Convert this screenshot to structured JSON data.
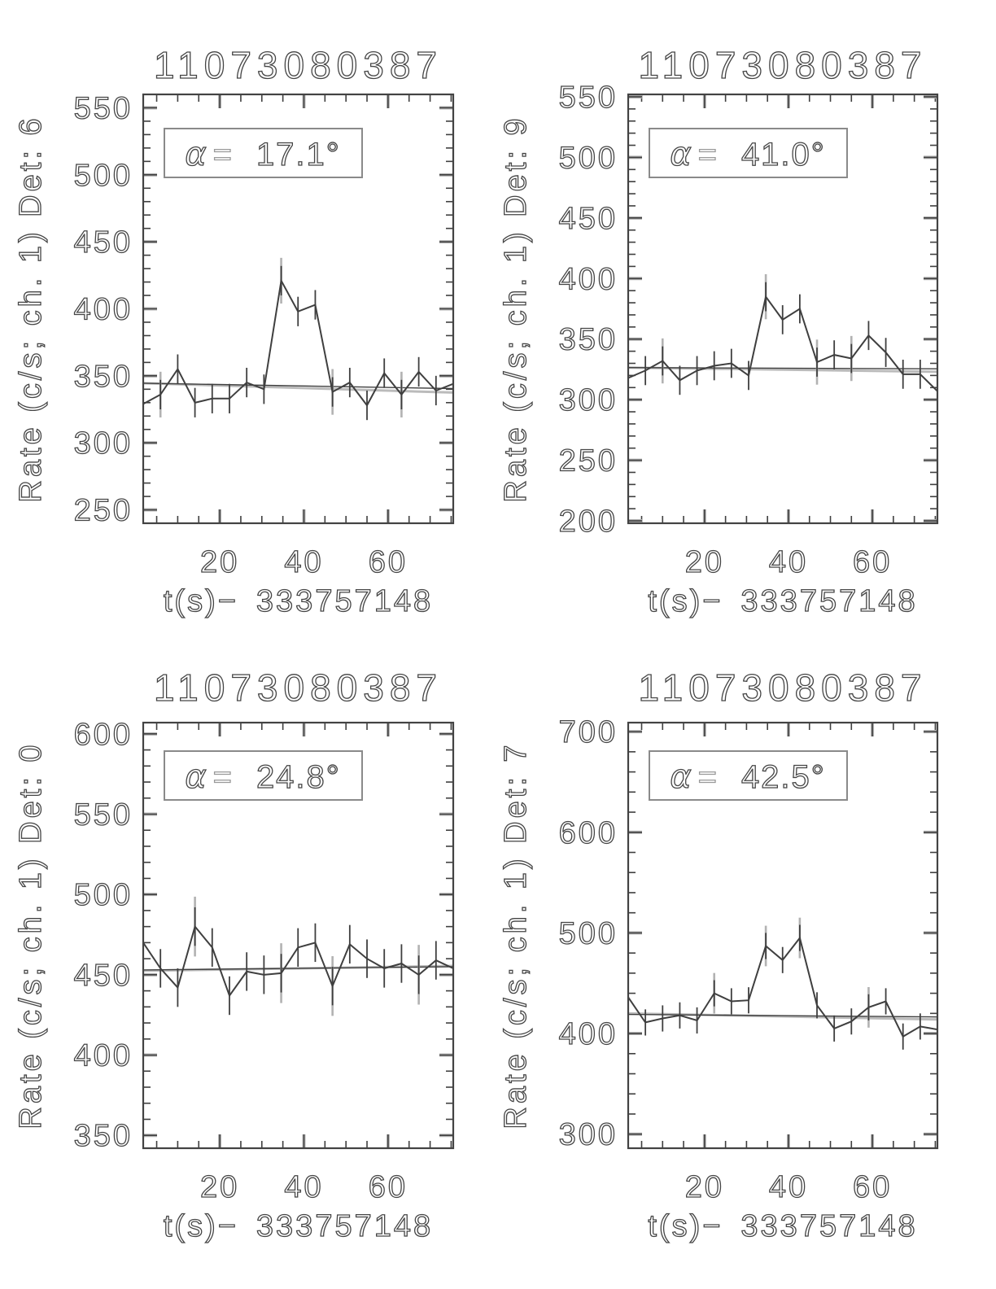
{
  "page": {
    "background": "#ffffff",
    "description": "2x2 grid of gamma-ray burst detector light curves"
  },
  "colors": {
    "ink": "#3f3f3f",
    "text_stroke": "#454545",
    "muted": "#b2b2b2",
    "fit_gray": "#bbbbbb",
    "frame": "#434343",
    "box_border": "#8a8a8a",
    "equals_gray": "#9a9a9a"
  },
  "chart_data": [
    {
      "id": "det6",
      "type": "line",
      "title": "11073080387",
      "ylabel": "Rate (c/s; ch. 1) Det: 6",
      "xlabel": "t(s)− 333757148",
      "annotation": {
        "symbol": "α",
        "equals": "=",
        "value": "17.1°"
      },
      "xlim": [
        1.8,
        75.5
      ],
      "ylim": [
        240,
        560
      ],
      "x_ticks": [
        20,
        40,
        60
      ],
      "x_minor_step": 5,
      "y_ticks": [
        250,
        300,
        350,
        400,
        450,
        500,
        550
      ],
      "y_minor_step": 10,
      "x": [
        1.8,
        5.9,
        10.0,
        14.1,
        18.2,
        22.3,
        26.4,
        30.5,
        34.6,
        38.6,
        42.7,
        46.8,
        50.9,
        55.0,
        59.1,
        63.2,
        67.3,
        71.4,
        75.5
      ],
      "rate": [
        329,
        336,
        355,
        330,
        333,
        333,
        345,
        340,
        421,
        398,
        403,
        338,
        345,
        328,
        352,
        336,
        353,
        339,
        344
      ],
      "err": 11,
      "err_gray_idx": [
        1,
        8,
        11,
        15
      ],
      "fit_gray": [
        344.5,
        337.5
      ],
      "fit_dark": [
        344.5,
        340.5
      ]
    },
    {
      "id": "det9",
      "type": "line",
      "title": "11073080387",
      "ylabel": "Rate (c/s; ch. 1) Det: 9",
      "xlabel": "t(s)− 333757148",
      "annotation": {
        "symbol": "α",
        "equals": "=",
        "value": "41.0°"
      },
      "xlim": [
        1.8,
        75.5
      ],
      "ylim": [
        198,
        552
      ],
      "x_ticks": [
        20,
        40,
        60
      ],
      "x_minor_step": 5,
      "y_ticks": [
        200,
        250,
        300,
        350,
        400,
        450,
        500,
        550
      ],
      "y_minor_step": 10,
      "x": [
        1.8,
        5.9,
        10.0,
        14.1,
        18.2,
        22.3,
        26.4,
        30.5,
        34.6,
        38.6,
        42.7,
        46.8,
        50.9,
        55.0,
        59.1,
        63.2,
        67.3,
        71.4,
        75.5
      ],
      "rate": [
        318,
        324,
        332,
        316,
        324,
        328,
        330,
        320,
        385,
        366,
        375,
        331,
        337,
        334,
        353,
        339,
        321,
        321,
        307
      ],
      "err": 12,
      "err_gray_idx": [
        2,
        8,
        11,
        13
      ],
      "fit_gray": [
        326.5,
        323.0
      ],
      "fit_dark": [
        326.5,
        325.5
      ]
    },
    {
      "id": "det0",
      "type": "line",
      "title": "11073080387",
      "ylabel": "Rate (c/s; ch. 1) Det: 0",
      "xlabel": "t(s)− 333757148",
      "annotation": {
        "symbol": "α",
        "equals": "=",
        "value": "24.8°"
      },
      "xlim": [
        1.8,
        75.5
      ],
      "ylim": [
        342,
        607
      ],
      "x_ticks": [
        20,
        40,
        60
      ],
      "x_minor_step": 5,
      "y_ticks": [
        350,
        400,
        450,
        500,
        550,
        600
      ],
      "y_minor_step": 10,
      "x": [
        1.8,
        5.9,
        10.0,
        14.1,
        18.2,
        22.3,
        26.4,
        30.5,
        34.6,
        38.6,
        42.7,
        46.8,
        50.9,
        55.0,
        59.1,
        63.2,
        67.3,
        71.4,
        75.5
      ],
      "rate": [
        470,
        454,
        442,
        480,
        467,
        437,
        452,
        450,
        451,
        467,
        470,
        443,
        469,
        460,
        454,
        457,
        450,
        459,
        454
      ],
      "err": 12,
      "err_gray_idx": [
        3,
        8,
        11,
        16
      ],
      "fit_gray": [
        452.5,
        455.5
      ],
      "fit_dark": [
        453.0,
        455.0
      ]
    },
    {
      "id": "det7",
      "type": "line",
      "title": "11073080387",
      "ylabel": "Rate (c/s; ch. 1) Det: 7",
      "xlabel": "t(s)− 333757148",
      "annotation": {
        "symbol": "α",
        "equals": "=",
        "value": "42.5°"
      },
      "xlim": [
        1.8,
        75.5
      ],
      "ylim": [
        286,
        709
      ],
      "x_ticks": [
        20,
        40,
        60
      ],
      "x_minor_step": 5,
      "y_ticks": [
        300,
        400,
        500,
        600,
        700
      ],
      "y_minor_step": 20,
      "x": [
        1.8,
        5.9,
        10.0,
        14.1,
        18.2,
        22.3,
        26.4,
        30.5,
        34.6,
        38.6,
        42.7,
        46.8,
        50.9,
        55.0,
        59.1,
        63.2,
        67.3,
        71.4,
        75.5
      ],
      "rate": [
        436,
        411,
        415,
        418,
        413,
        440,
        432,
        433,
        487,
        473,
        495,
        428,
        405,
        412,
        426,
        432,
        397,
        407,
        404
      ],
      "err": 13,
      "err_gray_idx": [
        5,
        8,
        10,
        14
      ],
      "fit_gray": [
        420.0,
        414.0
      ],
      "fit_dark": [
        419.0,
        416.5
      ]
    }
  ]
}
